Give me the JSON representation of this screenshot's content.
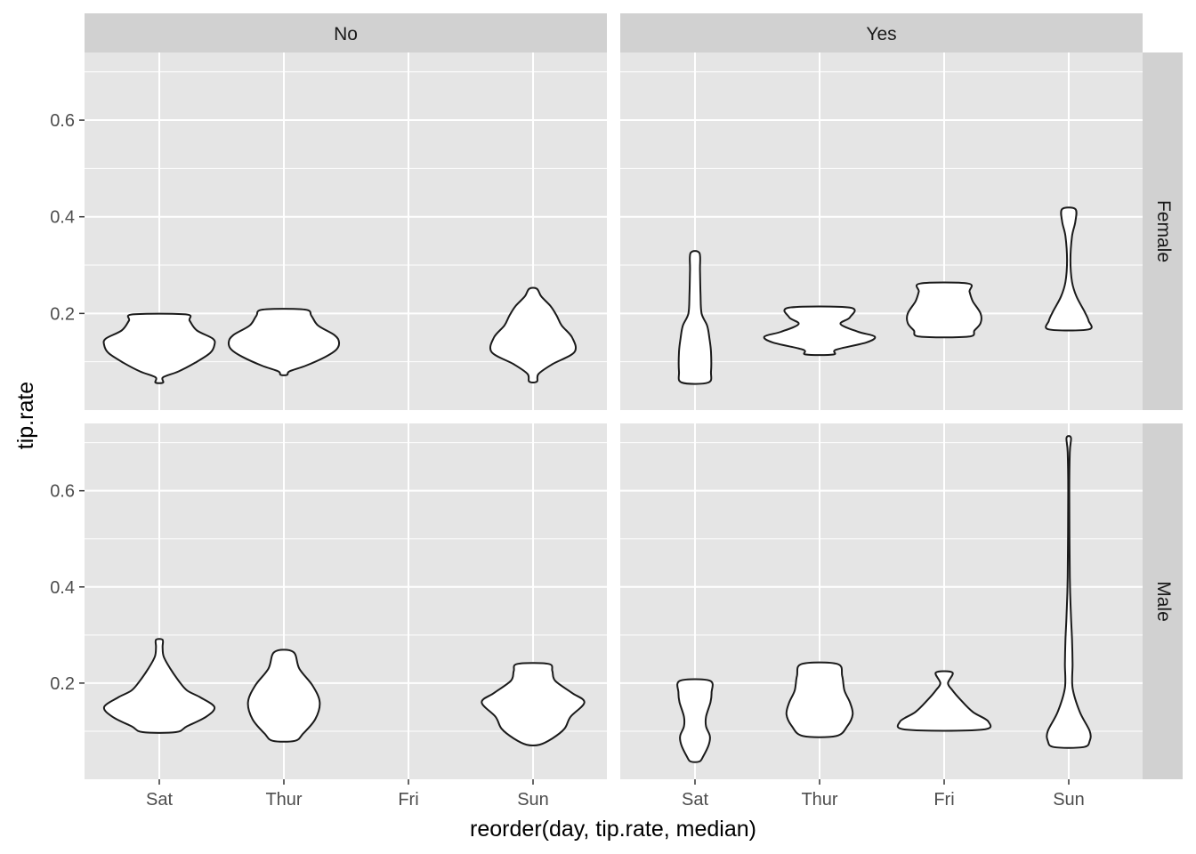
{
  "chart_data": {
    "type": "violin",
    "xlabel": "reorder(day, tip.rate, median)",
    "ylabel": "tip.rate",
    "x_categories": [
      "Sat",
      "Thur",
      "Fri",
      "Sun"
    ],
    "y_ticks": [
      0.2,
      0.4,
      0.6
    ],
    "y_tick_labels": [
      "0.2",
      "0.4",
      "0.6"
    ],
    "ylim": [
      0.0,
      0.74
    ],
    "grid": true,
    "facet_cols": [
      "No",
      "Yes"
    ],
    "facet_rows": [
      "Female",
      "Male"
    ],
    "colors": {
      "panel_bg": "#e5e5e5",
      "grid": "#ffffff",
      "strip_bg": "#d1d1d1",
      "violin_fill": "#ffffff",
      "violin_stroke": "#1a1a1a"
    },
    "panels": [
      {
        "col": "No",
        "row": "Female",
        "violins": [
          {
            "x": "Sat",
            "profile": [
              [
                0.057,
                0.07
              ],
              [
                0.068,
                0.07
              ],
              [
                0.08,
                0.35
              ],
              [
                0.098,
                0.65
              ],
              [
                0.118,
                0.92
              ],
              [
                0.135,
                1.0
              ],
              [
                0.148,
                0.97
              ],
              [
                0.165,
                0.68
              ],
              [
                0.185,
                0.55
              ],
              [
                0.198,
                0.48
              ]
            ]
          },
          {
            "x": "Thur",
            "profile": [
              [
                0.073,
                0.06
              ],
              [
                0.08,
                0.1
              ],
              [
                0.092,
                0.4
              ],
              [
                0.11,
                0.75
              ],
              [
                0.125,
                0.95
              ],
              [
                0.14,
                1.0
              ],
              [
                0.155,
                0.92
              ],
              [
                0.175,
                0.62
              ],
              [
                0.195,
                0.5
              ],
              [
                0.208,
                0.38
              ]
            ]
          },
          {
            "x": "Sun",
            "profile": [
              [
                0.059,
                0.07
              ],
              [
                0.075,
                0.1
              ],
              [
                0.095,
                0.35
              ],
              [
                0.12,
                0.75
              ],
              [
                0.15,
                0.71
              ],
              [
                0.175,
                0.52
              ],
              [
                0.195,
                0.43
              ],
              [
                0.215,
                0.32
              ],
              [
                0.235,
                0.15
              ],
              [
                0.251,
                0.07
              ]
            ]
          }
        ]
      },
      {
        "col": "Yes",
        "row": "Female",
        "violins": [
          {
            "x": "Sat",
            "profile": [
              [
                0.057,
                0.24
              ],
              [
                0.08,
                0.29
              ],
              [
                0.12,
                0.29
              ],
              [
                0.15,
                0.26
              ],
              [
                0.175,
                0.22
              ],
              [
                0.2,
                0.12
              ],
              [
                0.24,
                0.1
              ],
              [
                0.29,
                0.09
              ],
              [
                0.325,
                0.08
              ]
            ]
          },
          {
            "x": "Thur",
            "profile": [
              [
                0.115,
                0.25
              ],
              [
                0.125,
                0.3
              ],
              [
                0.14,
                0.85
              ],
              [
                0.152,
                1.0
              ],
              [
                0.162,
                0.7
              ],
              [
                0.178,
                0.38
              ],
              [
                0.192,
                0.55
              ],
              [
                0.212,
                0.55
              ]
            ]
          },
          {
            "x": "Fri",
            "profile": [
              [
                0.152,
                0.44
              ],
              [
                0.165,
                0.55
              ],
              [
                0.18,
                0.66
              ],
              [
                0.2,
                0.66
              ],
              [
                0.225,
                0.52
              ],
              [
                0.245,
                0.46
              ],
              [
                0.262,
                0.43
              ]
            ]
          },
          {
            "x": "Sun",
            "profile": [
              [
                0.167,
                0.36
              ],
              [
                0.185,
                0.36
              ],
              [
                0.205,
                0.28
              ],
              [
                0.235,
                0.14
              ],
              [
                0.265,
                0.06
              ],
              [
                0.31,
                0.03
              ],
              [
                0.36,
                0.06
              ],
              [
                0.39,
                0.12
              ],
              [
                0.416,
                0.12
              ]
            ]
          }
        ]
      },
      {
        "col": "No",
        "row": "Male",
        "violins": [
          {
            "x": "Sat",
            "profile": [
              [
                0.098,
                0.3
              ],
              [
                0.11,
                0.5
              ],
              [
                0.13,
                0.85
              ],
              [
                0.15,
                1.0
              ],
              [
                0.17,
                0.75
              ],
              [
                0.185,
                0.5
              ],
              [
                0.205,
                0.35
              ],
              [
                0.23,
                0.2
              ],
              [
                0.255,
                0.08
              ],
              [
                0.275,
                0.06
              ],
              [
                0.29,
                0.06
              ]
            ]
          },
          {
            "x": "Thur",
            "profile": [
              [
                0.08,
                0.2
              ],
              [
                0.095,
                0.35
              ],
              [
                0.125,
                0.57
              ],
              [
                0.16,
                0.65
              ],
              [
                0.195,
                0.52
              ],
              [
                0.23,
                0.28
              ],
              [
                0.265,
                0.17
              ]
            ]
          },
          {
            "x": "Sun",
            "profile": [
              [
                0.072,
                0.12
              ],
              [
                0.085,
                0.35
              ],
              [
                0.105,
                0.57
              ],
              [
                0.13,
                0.68
              ],
              [
                0.16,
                0.93
              ],
              [
                0.18,
                0.7
              ],
              [
                0.205,
                0.4
              ],
              [
                0.225,
                0.35
              ],
              [
                0.24,
                0.28
              ]
            ]
          }
        ]
      },
      {
        "col": "Yes",
        "row": "Male",
        "violins": [
          {
            "x": "Sat",
            "profile": [
              [
                0.037,
                0.08
              ],
              [
                0.048,
                0.15
              ],
              [
                0.072,
                0.25
              ],
              [
                0.09,
                0.27
              ],
              [
                0.11,
                0.2
              ],
              [
                0.13,
                0.2
              ],
              [
                0.16,
                0.28
              ],
              [
                0.18,
                0.3
              ],
              [
                0.205,
                0.27
              ]
            ]
          },
          {
            "x": "Thur",
            "profile": [
              [
                0.09,
                0.3
              ],
              [
                0.11,
                0.5
              ],
              [
                0.135,
                0.6
              ],
              [
                0.16,
                0.55
              ],
              [
                0.185,
                0.45
              ],
              [
                0.215,
                0.41
              ],
              [
                0.24,
                0.32
              ]
            ]
          },
          {
            "x": "Fri",
            "profile": [
              [
                0.103,
                0.68
              ],
              [
                0.12,
                0.8
              ],
              [
                0.14,
                0.52
              ],
              [
                0.165,
                0.3
              ],
              [
                0.185,
                0.15
              ],
              [
                0.2,
                0.07
              ],
              [
                0.222,
                0.15
              ]
            ]
          },
          {
            "x": "Sun",
            "profile": [
              [
                0.067,
                0.27
              ],
              [
                0.08,
                0.38
              ],
              [
                0.1,
                0.38
              ],
              [
                0.14,
                0.2
              ],
              [
                0.19,
                0.07
              ],
              [
                0.24,
                0.07
              ],
              [
                0.29,
                0.06
              ],
              [
                0.34,
                0.04
              ],
              [
                0.42,
                0.02
              ],
              [
                0.6,
                0.01
              ],
              [
                0.68,
                0.02
              ],
              [
                0.71,
                0.04
              ]
            ]
          }
        ]
      }
    ]
  }
}
